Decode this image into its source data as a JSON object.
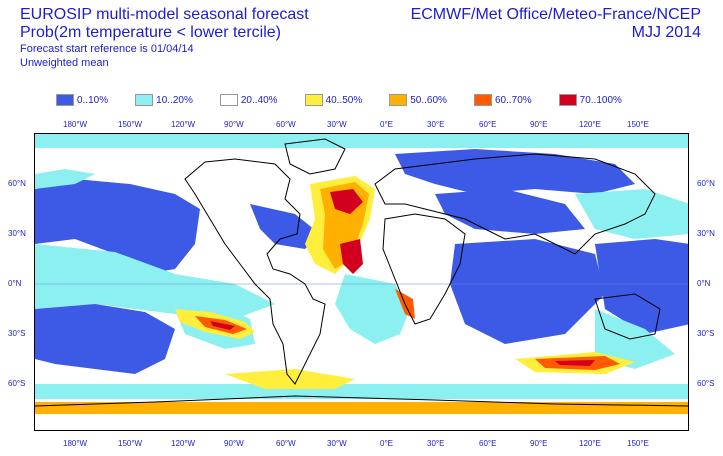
{
  "header": {
    "title_line1": "EUROSIP multi-model seasonal forecast",
    "title_line2": "Prob(2m temperature < lower tercile)",
    "start_ref": "Forecast start reference is 01/04/14",
    "mean_type": "Unweighted mean",
    "centres": "ECMWF/Met Office/Meteo-France/NCEP",
    "season": "MJJ 2014"
  },
  "legend": [
    {
      "label": "0..10%",
      "color": "#3c5ae6"
    },
    {
      "label": "10..20%",
      "color": "#8cf0f0"
    },
    {
      "label": "20..40%",
      "color": "#ffffff"
    },
    {
      "label": "40..50%",
      "color": "#ffef3c"
    },
    {
      "label": "50..60%",
      "color": "#ffb000"
    },
    {
      "label": "60..70%",
      "color": "#ff5a00"
    },
    {
      "label": "70..100%",
      "color": "#d2001e"
    }
  ],
  "lon_ticks": [
    "180°W",
    "150°W",
    "120°W",
    "90°W",
    "60°W",
    "30°W",
    "0°E",
    "30°E",
    "60°E",
    "90°E",
    "120°E",
    "150°E"
  ],
  "lat_ticks": [
    "60°N",
    "30°N",
    "0°N",
    "30°S",
    "60°S"
  ]
}
